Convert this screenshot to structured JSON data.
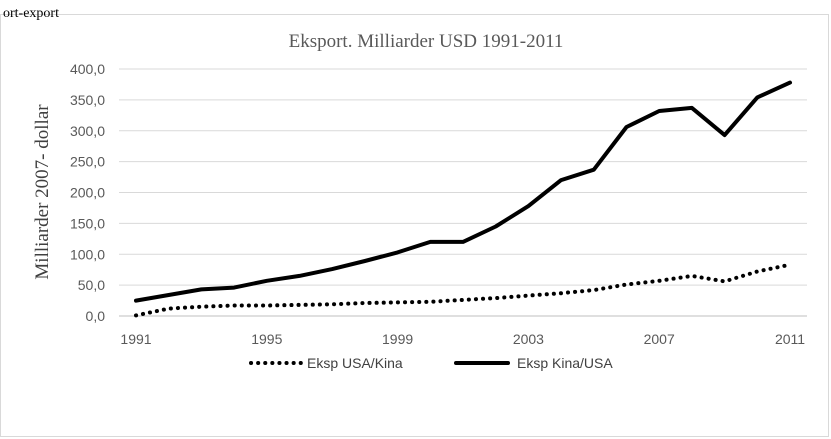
{
  "partial_text": "ort-export",
  "chart_data": {
    "type": "line",
    "title": "Eksport. Milliarder USD 1991-2011",
    "xlabel": "",
    "ylabel": "Milliarder 2007- dollar",
    "x": [
      1991,
      1992,
      1993,
      1994,
      1995,
      1996,
      1997,
      1998,
      1999,
      2000,
      2001,
      2002,
      2003,
      2004,
      2005,
      2006,
      2007,
      2008,
      2009,
      2010,
      2011
    ],
    "x_tick_labels": [
      "1991",
      "1995",
      "1999",
      "2003",
      "2007",
      "2011"
    ],
    "x_ticks": [
      1991,
      1995,
      1999,
      2003,
      2007,
      2011
    ],
    "ylim": [
      0,
      400
    ],
    "y_ticks": [
      0,
      50,
      100,
      150,
      200,
      250,
      300,
      350,
      400
    ],
    "y_tick_labels": [
      "0,0",
      "50,0",
      "100,0",
      "150,0",
      "200,0",
      "250,0",
      "300,0",
      "350,0",
      "400,0"
    ],
    "grid": true,
    "legend_position": "bottom",
    "series": [
      {
        "name": "Eksp USA/Kina",
        "style": "dotted",
        "color": "#000000",
        "values": [
          1,
          12,
          15,
          17,
          17,
          18,
          19,
          21,
          22,
          23,
          26,
          29,
          33,
          37,
          42,
          51,
          57,
          65,
          56,
          72,
          83
        ]
      },
      {
        "name": "Eksp Kina/USA",
        "style": "solid",
        "color": "#000000",
        "values": [
          25,
          34,
          43,
          46,
          57,
          65,
          76,
          89,
          103,
          120,
          120,
          145,
          178,
          220,
          237,
          306,
          332,
          337,
          293,
          354,
          378
        ]
      }
    ]
  }
}
